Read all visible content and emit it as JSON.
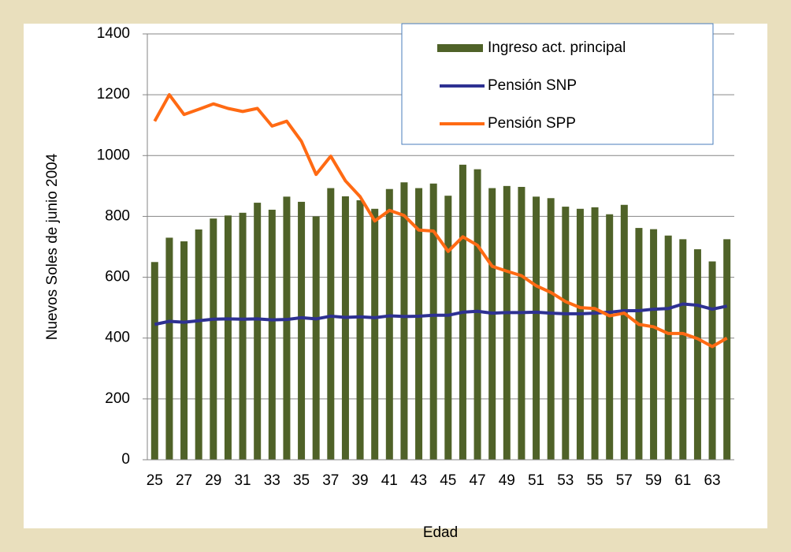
{
  "chart_data": {
    "type": "bar_line",
    "x_label": "Edad",
    "y_label": "Nuevos Soles de junio 2004",
    "categories": [
      "25",
      null,
      "27",
      null,
      "29",
      null,
      "31",
      null,
      "33",
      null,
      "35",
      null,
      "37",
      null,
      "39",
      null,
      "41",
      null,
      "43",
      null,
      "45",
      null,
      "47",
      null,
      "49",
      null,
      "51",
      null,
      "53",
      null,
      "55",
      null,
      "57",
      null,
      "59",
      null,
      "61",
      null,
      "63",
      null
    ],
    "series": [
      {
        "name": "Ingreso act. principal",
        "kind": "bar",
        "color": "#4f6228",
        "values": [
          650,
          730,
          718,
          757,
          793,
          803,
          812,
          845,
          822,
          865,
          848,
          800,
          893,
          866,
          853,
          825,
          890,
          912,
          893,
          908,
          868,
          970,
          955,
          893,
          900,
          897,
          865,
          860,
          832,
          825,
          830,
          807,
          838,
          762,
          758,
          737,
          725,
          692,
          652,
          725
        ]
      },
      {
        "name": "Pensión SNP",
        "kind": "line",
        "color": "#2e3192",
        "values": [
          445,
          455,
          452,
          457,
          462,
          463,
          462,
          463,
          460,
          461,
          467,
          463,
          472,
          468,
          470,
          467,
          473,
          471,
          472,
          475,
          475,
          485,
          488,
          482,
          484,
          484,
          485,
          482,
          480,
          480,
          482,
          485,
          490,
          490,
          495,
          497,
          512,
          508,
          495,
          505
        ]
      },
      {
        "name": "Pensión SPP",
        "kind": "line",
        "color": "#ff6a13",
        "values": [
          1113,
          1200,
          1135,
          1152,
          1170,
          1155,
          1145,
          1155,
          1097,
          1113,
          1047,
          938,
          998,
          917,
          865,
          785,
          820,
          803,
          755,
          752,
          685,
          733,
          705,
          636,
          620,
          605,
          572,
          550,
          520,
          500,
          497,
          473,
          482,
          445,
          437,
          415,
          415,
          398,
          372,
          400
        ]
      }
    ],
    "ylim": [
      0,
      1400
    ],
    "yticks": [
      0,
      200,
      400,
      600,
      800,
      1000,
      1200,
      1400
    ],
    "grid": true
  }
}
